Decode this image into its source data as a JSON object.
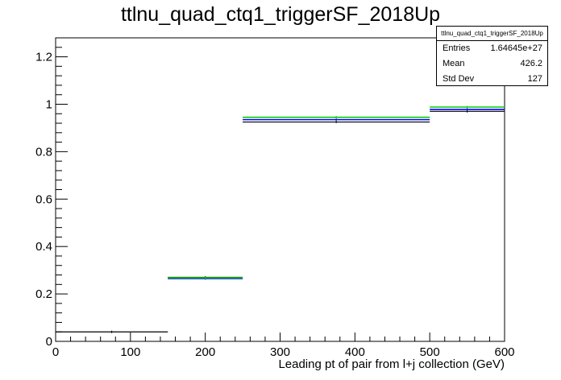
{
  "chart_data": {
    "type": "histogram",
    "title": "ttlnu_quad_ctq1_triggerSF_2018Up",
    "xlabel": "Leading pt of pair from l+j collection (GeV)",
    "ylabel": "",
    "xlim": [
      0,
      600
    ],
    "ylim": [
      0,
      1.28
    ],
    "xticks": [
      0,
      100,
      200,
      300,
      400,
      500,
      600
    ],
    "xtick_labels": [
      "0",
      "100",
      "200",
      "300",
      "400",
      "500",
      "600"
    ],
    "yticks": [
      0,
      0.2,
      0.4,
      0.6,
      0.8,
      1,
      1.2
    ],
    "ytick_labels": [
      "0",
      "0.2",
      "0.4",
      "0.6",
      "0.8",
      "1",
      "1.2"
    ],
    "grid": false,
    "series": [
      {
        "color": "#000000",
        "bins": [
          [
            0,
            150,
            0.04
          ],
          [
            150,
            250,
            0.27
          ],
          [
            250,
            500,
            0.925
          ],
          [
            500,
            600,
            0.97
          ]
        ]
      },
      {
        "color": "#0000ff",
        "bins": [
          [
            150,
            250,
            0.265
          ],
          [
            250,
            500,
            0.935
          ],
          [
            500,
            600,
            0.978
          ]
        ]
      },
      {
        "color": "#00cc00",
        "bins": [
          [
            150,
            250,
            0.268
          ],
          [
            250,
            500,
            0.945
          ],
          [
            500,
            600,
            0.988
          ]
        ]
      }
    ]
  },
  "stats": {
    "name": "ttlnu_quad_ctq1_triggerSF_2018Up",
    "entries_label": "Entries",
    "entries_value": "1.64645e+27",
    "mean_label": "Mean",
    "mean_value": "426.2",
    "stddev_label": "Std Dev",
    "stddev_value": "127"
  }
}
